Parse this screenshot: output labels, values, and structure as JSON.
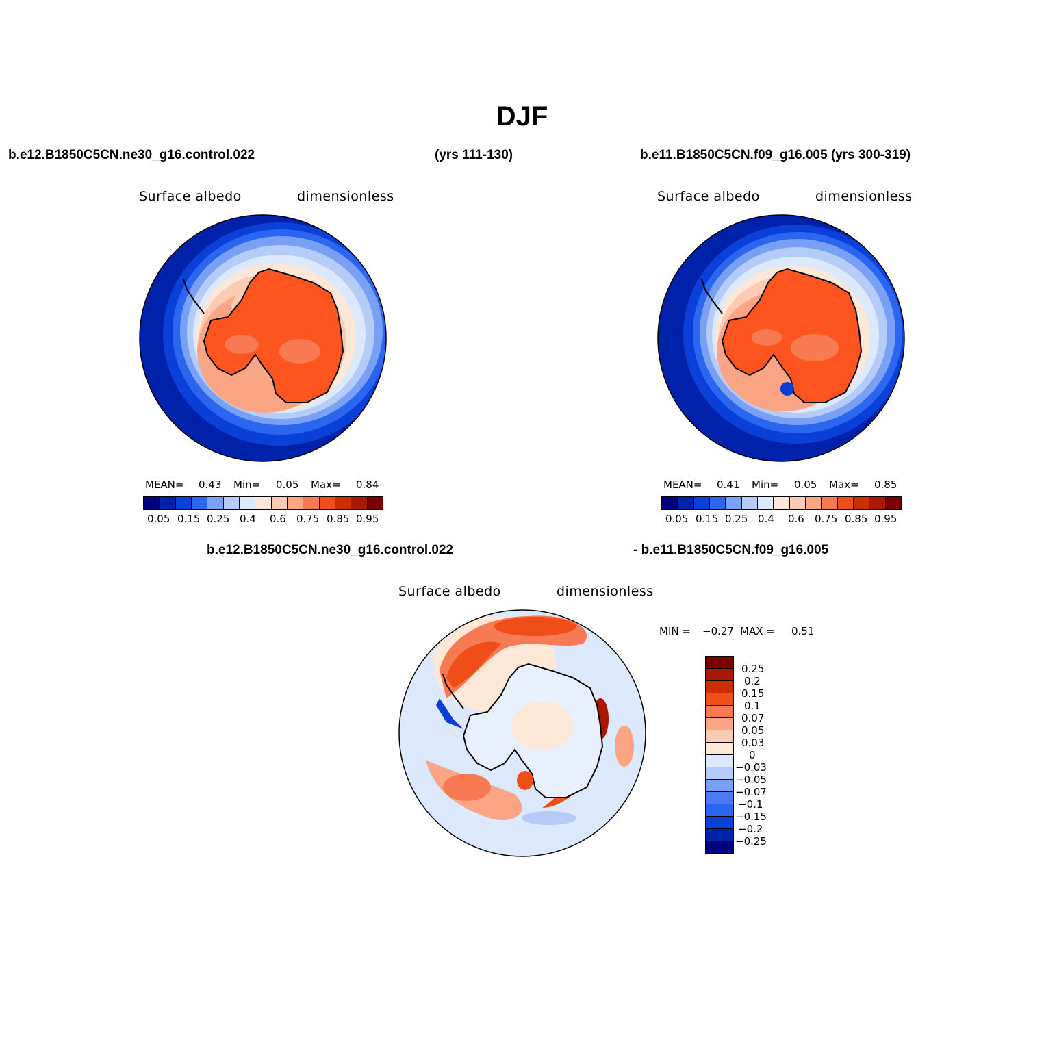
{
  "figure": {
    "title": "DJF",
    "case1": "b.e12.B1850C5CN.ne30_g16.control.022",
    "case1_years": "(yrs 111-130)",
    "case2_full": "b.e11.B1850C5CN.f09_g16.005 (yrs 300-319)",
    "diff_left": "b.e12.B1850C5CN.ne30_g16.control.022",
    "diff_right": "- b.e11.B1850C5CN.f09_g16.005"
  },
  "panels": [
    {
      "variable": "Surface albedo",
      "units": "dimensionless",
      "mean_label": "MEAN=",
      "mean_value": "0.43",
      "min_label": "Min=",
      "min_value": "0.05",
      "max_label": "Max=",
      "max_value": "0.84"
    },
    {
      "variable": "Surface albedo",
      "units": "dimensionless",
      "mean_label": "MEAN=",
      "mean_value": "0.41",
      "min_label": "Min=",
      "min_value": "0.05",
      "max_label": "Max=",
      "max_value": "0.85"
    },
    {
      "variable": "Surface albedo",
      "units": "dimensionless",
      "min_label": "MIN =",
      "min_value": "−0.27",
      "max_label": "MAX =",
      "max_value": "0.51"
    }
  ],
  "colorbar_abs": {
    "labels": [
      "0.05",
      "0.15",
      "0.25",
      "0.4",
      "0.6",
      "0.75",
      "0.85",
      "0.95"
    ],
    "colors": [
      "#00007f",
      "#0022aa",
      "#0a3fd8",
      "#2a66f0",
      "#7aa0f5",
      "#b5ccf8",
      "#dce9fc",
      "#fde7d7",
      "#fccbb3",
      "#fba584",
      "#f77a52",
      "#f04e18",
      "#cc3000",
      "#aa1800",
      "#7a0000"
    ]
  },
  "colorbar_diff": {
    "labels": [
      "0.25",
      "0.2",
      "0.15",
      "0.1",
      "0.07",
      "0.05",
      "0.03",
      "0",
      "−0.03",
      "−0.05",
      "−0.07",
      "−0.1",
      "−0.15",
      "−0.2",
      "−0.25"
    ],
    "colors": [
      "#7a0000",
      "#aa1800",
      "#cc3000",
      "#f04e18",
      "#f77a52",
      "#fba584",
      "#fccbb3",
      "#fde7d7",
      "#dce9fc",
      "#b5ccf8",
      "#7aa0f5",
      "#4a7bf2",
      "#2a66f0",
      "#0a3fd8",
      "#0022aa",
      "#00007f"
    ]
  },
  "map_colors": {
    "ocean_dark": "#0022aa",
    "ocean_mid": "#0a3fd8",
    "ocean_light": "#2a66f0",
    "band1": "#7aa0f5",
    "band2": "#b5ccf8",
    "band3": "#dce9fc",
    "ice_edge": "#fde7d7",
    "ice_pale": "#fccbb3",
    "ice_mid": "#fba584",
    "continent": "#fe5520",
    "continent_alt": "#f77a52",
    "diff_bg": "#dce9fc",
    "diff_warm": "#fde7d7",
    "diff_red": "#f04e18",
    "diff_blue": "#2a66f0"
  }
}
